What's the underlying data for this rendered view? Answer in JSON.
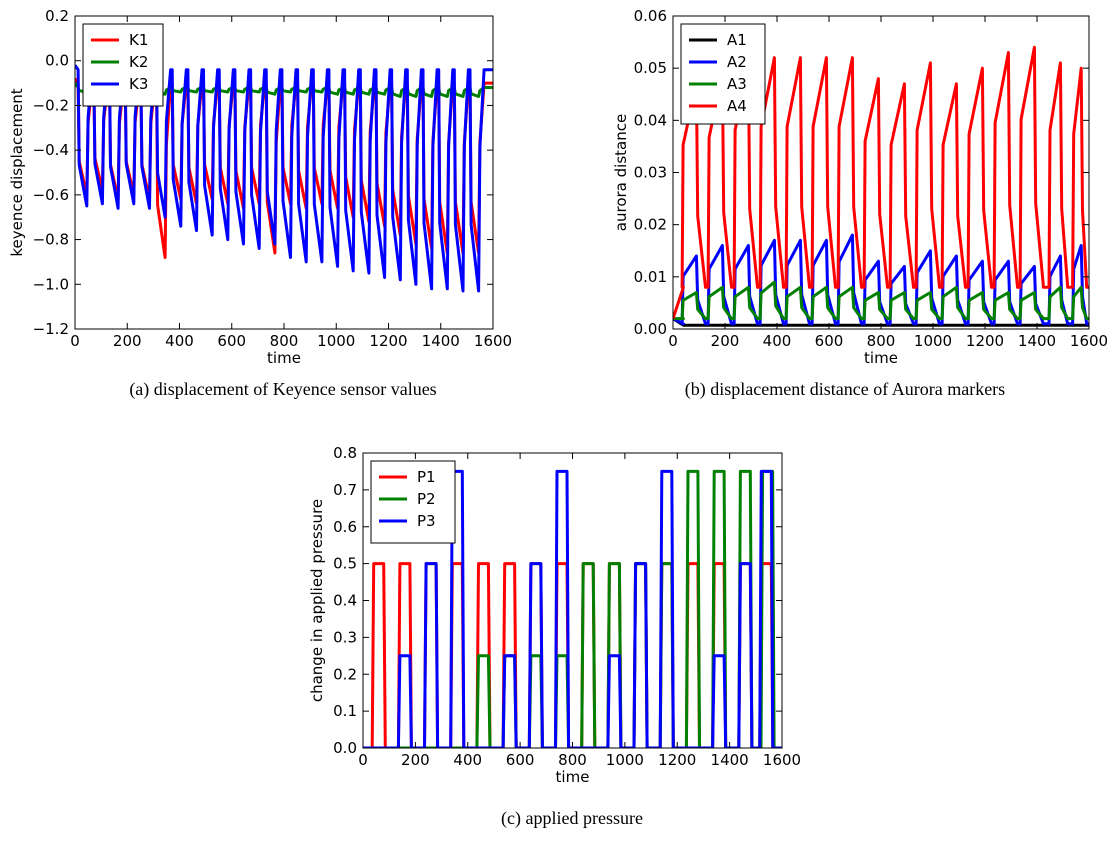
{
  "chart_data": [
    {
      "type": "line",
      "caption": "(a) displacement of Keyence sensor values",
      "xlabel": "time",
      "ylabel": "keyence displacement",
      "xlim": [
        0,
        1600
      ],
      "ylim": [
        -1.2,
        0.2
      ],
      "xticks": [
        0,
        200,
        400,
        600,
        800,
        1000,
        1200,
        1400,
        1600
      ],
      "yticks": [
        0.2,
        0.0,
        -0.2,
        -0.4,
        -0.6,
        -0.8,
        -1.0,
        -1.2
      ],
      "ytick_labels": [
        "0.2",
        "0.0",
        "−0.2",
        "−0.4",
        "−0.6",
        "−0.8",
        "−1.0",
        "−1.2"
      ],
      "legend_position": "top-left",
      "grid": false,
      "series": [
        {
          "name": "K1",
          "color": "#ff0000",
          "baseline": -0.1,
          "x": [
            45,
            105,
            165,
            225,
            285,
            345,
            405,
            465,
            525,
            585,
            645,
            705,
            765,
            825,
            885,
            945,
            1005,
            1065,
            1125,
            1185,
            1245,
            1305,
            1365,
            1425,
            1485,
            1545
          ],
          "values": [
            -0.6,
            -0.58,
            -0.62,
            -0.6,
            -0.62,
            -0.88,
            -0.62,
            -0.64,
            -0.62,
            -0.64,
            -0.66,
            -0.64,
            -0.86,
            -0.64,
            -0.66,
            -0.64,
            -0.66,
            -0.7,
            -0.72,
            -0.74,
            -0.78,
            -0.82,
            -0.84,
            -0.86,
            -0.86,
            -0.86
          ]
        },
        {
          "name": "K2",
          "color": "#008000",
          "baseline": -0.12,
          "x": [
            45,
            105,
            165,
            225,
            285,
            345,
            405,
            465,
            525,
            585,
            645,
            705,
            765,
            825,
            885,
            945,
            1005,
            1065,
            1125,
            1185,
            1245,
            1305,
            1365,
            1425,
            1485,
            1545
          ],
          "values": [
            -0.14,
            -0.14,
            -0.14,
            -0.14,
            -0.14,
            -0.15,
            -0.14,
            -0.14,
            -0.14,
            -0.14,
            -0.14,
            -0.14,
            -0.15,
            -0.14,
            -0.14,
            -0.14,
            -0.15,
            -0.15,
            -0.15,
            -0.15,
            -0.16,
            -0.16,
            -0.16,
            -0.16,
            -0.16,
            -0.16
          ]
        },
        {
          "name": "K3",
          "color": "#0000ff",
          "baseline": -0.04,
          "x": [
            45,
            105,
            165,
            225,
            285,
            345,
            405,
            465,
            525,
            585,
            645,
            705,
            765,
            825,
            885,
            945,
            1005,
            1065,
            1125,
            1185,
            1245,
            1305,
            1365,
            1425,
            1485,
            1545
          ],
          "values": [
            -0.65,
            -0.64,
            -0.66,
            -0.64,
            -0.66,
            -0.7,
            -0.74,
            -0.76,
            -0.78,
            -0.8,
            -0.82,
            -0.84,
            -0.82,
            -0.88,
            -0.9,
            -0.9,
            -0.92,
            -0.94,
            -0.95,
            -0.97,
            -0.98,
            -1.0,
            -1.02,
            -1.02,
            -1.03,
            -1.03
          ]
        }
      ]
    },
    {
      "type": "line",
      "caption": "(b) displacement distance of Aurora markers",
      "xlabel": "time",
      "ylabel": "aurora distance",
      "xlim": [
        0,
        1600
      ],
      "ylim": [
        0.0,
        0.06
      ],
      "xticks": [
        0,
        200,
        400,
        600,
        800,
        1000,
        1200,
        1400,
        1600
      ],
      "yticks": [
        0.0,
        0.01,
        0.02,
        0.03,
        0.04,
        0.05,
        0.06
      ],
      "ytick_labels": [
        "0.00",
        "0.01",
        "0.02",
        "0.03",
        "0.04",
        "0.05",
        "0.06"
      ],
      "legend_position": "top-left",
      "grid": false,
      "series": [
        {
          "name": "A1",
          "color": "#000000",
          "baseline": 0.0007,
          "x": [],
          "values": []
        },
        {
          "name": "A2",
          "color": "#0000ff",
          "baseline": 0.001,
          "x": [
            90,
            190,
            290,
            390,
            490,
            590,
            690,
            790,
            890,
            990,
            1090,
            1190,
            1290,
            1390,
            1490,
            1570
          ],
          "values": [
            0.014,
            0.016,
            0.016,
            0.017,
            0.017,
            0.017,
            0.018,
            0.013,
            0.012,
            0.015,
            0.014,
            0.013,
            0.013,
            0.012,
            0.014,
            0.016
          ]
        },
        {
          "name": "A3",
          "color": "#008000",
          "baseline": 0.002,
          "x": [
            90,
            190,
            290,
            390,
            490,
            590,
            690,
            790,
            890,
            990,
            1090,
            1190,
            1290,
            1390,
            1490,
            1570
          ],
          "values": [
            0.007,
            0.008,
            0.008,
            0.009,
            0.008,
            0.008,
            0.008,
            0.007,
            0.007,
            0.007,
            0.008,
            0.007,
            0.007,
            0.007,
            0.008,
            0.008
          ]
        },
        {
          "name": "A4",
          "color": "#ff0000",
          "baseline": 0.008,
          "x": [
            90,
            190,
            290,
            390,
            490,
            590,
            690,
            790,
            890,
            990,
            1090,
            1190,
            1290,
            1390,
            1490,
            1570
          ],
          "values": [
            0.047,
            0.049,
            0.051,
            0.052,
            0.052,
            0.052,
            0.052,
            0.048,
            0.047,
            0.051,
            0.047,
            0.05,
            0.053,
            0.054,
            0.051,
            0.05
          ]
        }
      ]
    },
    {
      "type": "line",
      "caption": "(c) applied pressure",
      "xlabel": "time",
      "ylabel": "change in applied pressure",
      "xlim": [
        0,
        1600
      ],
      "ylim": [
        0.0,
        0.8
      ],
      "xticks": [
        0,
        200,
        400,
        600,
        800,
        1000,
        1200,
        1400,
        1600
      ],
      "yticks": [
        0.0,
        0.1,
        0.2,
        0.3,
        0.4,
        0.5,
        0.6,
        0.7,
        0.8
      ],
      "ytick_labels": [
        "0.0",
        "0.1",
        "0.2",
        "0.3",
        "0.4",
        "0.5",
        "0.6",
        "0.7",
        "0.8"
      ],
      "legend_position": "top-left",
      "grid": false,
      "series": [
        {
          "name": "P1",
          "color": "#ff0000",
          "pulses": [
            [
              35,
              85,
              0.5
            ],
            [
              135,
              185,
              0.5
            ],
            [
              235,
              285,
              0.5
            ],
            [
              335,
              385,
              0.5
            ],
            [
              435,
              485,
              0.5
            ],
            [
              535,
              585,
              0.5
            ],
            [
              635,
              685,
              0.5
            ],
            [
              735,
              785,
              0.5
            ],
            [
              835,
              885,
              0.5
            ],
            [
              935,
              985,
              0.5
            ],
            [
              1035,
              1085,
              0.5
            ],
            [
              1135,
              1185,
              0.5
            ],
            [
              1235,
              1285,
              0.5
            ],
            [
              1335,
              1385,
              0.5
            ],
            [
              1435,
              1485,
              0.5
            ],
            [
              1515,
              1565,
              0.5
            ]
          ]
        },
        {
          "name": "P2",
          "color": "#008000",
          "pulses": [
            [
              435,
              485,
              0.25
            ],
            [
              535,
              585,
              0.25
            ],
            [
              635,
              685,
              0.25
            ],
            [
              735,
              785,
              0.25
            ],
            [
              835,
              885,
              0.5
            ],
            [
              935,
              985,
              0.5
            ],
            [
              1035,
              1085,
              0.5
            ],
            [
              1135,
              1185,
              0.5
            ],
            [
              1235,
              1285,
              0.75
            ],
            [
              1335,
              1385,
              0.75
            ],
            [
              1435,
              1485,
              0.75
            ],
            [
              1520,
              1570,
              0.75
            ]
          ]
        },
        {
          "name": "P3",
          "color": "#0000ff",
          "pulses": [
            [
              135,
              185,
              0.25
            ],
            [
              235,
              285,
              0.5
            ],
            [
              335,
              385,
              0.75
            ],
            [
              535,
              585,
              0.25
            ],
            [
              635,
              685,
              0.5
            ],
            [
              735,
              785,
              0.75
            ],
            [
              935,
              985,
              0.25
            ],
            [
              1035,
              1085,
              0.5
            ],
            [
              1135,
              1185,
              0.75
            ],
            [
              1335,
              1385,
              0.25
            ],
            [
              1435,
              1485,
              0.5
            ],
            [
              1515,
              1565,
              0.75
            ]
          ]
        }
      ]
    }
  ]
}
